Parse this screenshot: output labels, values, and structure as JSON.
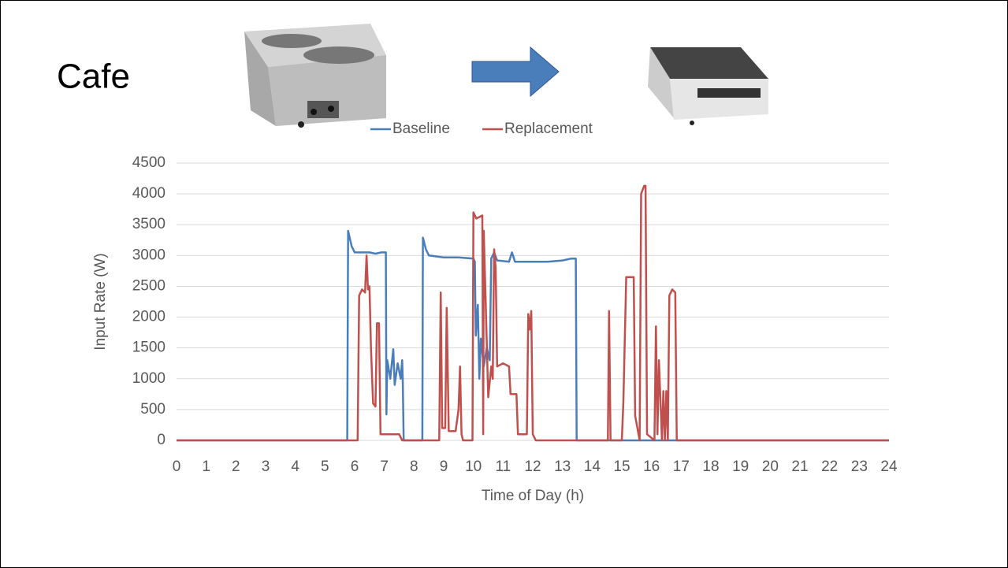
{
  "chart_data": {
    "type": "line",
    "title": "Cafe",
    "x_label": "Time of Day (h)",
    "y_label": "Input Rate (W)",
    "xlim": [
      0,
      24
    ],
    "xticks": [
      0,
      1,
      2,
      3,
      4,
      5,
      6,
      7,
      8,
      9,
      10,
      11,
      12,
      13,
      14,
      15,
      16,
      17,
      18,
      19,
      20,
      21,
      22,
      23,
      24
    ],
    "ylim": [
      0,
      4500
    ],
    "yticks": [
      0,
      500,
      1000,
      1500,
      2000,
      2500,
      3000,
      3500,
      4000,
      4500
    ],
    "grid": true,
    "legend": "top",
    "series": [
      {
        "name": "Baseline",
        "color": "#4a7ebb",
        "x": [
          0,
          5.75,
          5.78,
          5.9,
          6.0,
          6.5,
          6.7,
          6.9,
          7.05,
          7.07,
          7.1,
          7.2,
          7.3,
          7.35,
          7.45,
          7.55,
          7.6,
          7.62,
          7.65,
          8.28,
          8.3,
          8.4,
          8.5,
          9.0,
          9.5,
          10.0,
          10.05,
          10.08,
          10.15,
          10.2,
          10.25,
          10.35,
          10.45,
          10.55,
          10.6,
          10.7,
          10.8,
          11.2,
          11.3,
          11.4,
          12.0,
          12.5,
          13.0,
          13.3,
          13.45,
          13.48,
          24
        ],
        "values": [
          0,
          0,
          3400,
          3150,
          3050,
          3050,
          3030,
          3050,
          3050,
          420,
          1300,
          1000,
          1480,
          900,
          1250,
          1000,
          1300,
          1000,
          0,
          0,
          3290,
          3100,
          3000,
          2970,
          2970,
          2950,
          2900,
          1700,
          2200,
          1000,
          1650,
          1200,
          1500,
          1300,
          2950,
          3050,
          2920,
          2900,
          3050,
          2900,
          2900,
          2900,
          2920,
          2950,
          2950,
          0,
          0
        ]
      },
      {
        "name": "Replacement",
        "color": "#c0504d",
        "x": [
          0,
          6.1,
          6.15,
          6.25,
          6.35,
          6.4,
          6.45,
          6.5,
          6.55,
          6.62,
          6.7,
          6.75,
          6.82,
          6.87,
          7.5,
          7.55,
          7.6,
          8.85,
          8.9,
          8.95,
          9.05,
          9.1,
          9.17,
          9.4,
          9.5,
          9.55,
          9.6,
          9.65,
          9.97,
          10.0,
          10.1,
          10.3,
          10.33,
          10.35,
          10.45,
          10.5,
          10.6,
          10.65,
          10.7,
          10.75,
          10.8,
          11.0,
          11.2,
          11.25,
          11.45,
          11.5,
          11.8,
          11.85,
          11.9,
          11.95,
          12.0,
          12.1,
          14.53,
          14.57,
          14.62,
          15.0,
          15.05,
          15.15,
          15.4,
          15.45,
          15.6,
          15.65,
          15.75,
          15.8,
          15.85,
          16.1,
          16.15,
          16.2,
          16.25,
          16.35,
          16.4,
          16.45,
          16.5,
          16.55,
          16.6,
          16.7,
          16.8,
          16.85,
          24
        ],
        "values": [
          0,
          0,
          2350,
          2450,
          2400,
          3000,
          2450,
          2500,
          1500,
          600,
          550,
          1900,
          1900,
          100,
          100,
          50,
          0,
          0,
          2400,
          200,
          200,
          2150,
          150,
          150,
          500,
          1200,
          100,
          0,
          0,
          3700,
          3600,
          3650,
          100,
          3400,
          1600,
          700,
          1200,
          1000,
          3100,
          2800,
          1200,
          1250,
          1200,
          750,
          750,
          100,
          100,
          2050,
          1800,
          2100,
          100,
          0,
          0,
          2100,
          0,
          0,
          600,
          2650,
          2650,
          400,
          0,
          4000,
          4130,
          4130,
          100,
          0,
          1850,
          100,
          1300,
          0,
          800,
          0,
          800,
          0,
          2350,
          2450,
          2400,
          0,
          0
        ]
      }
    ]
  }
}
